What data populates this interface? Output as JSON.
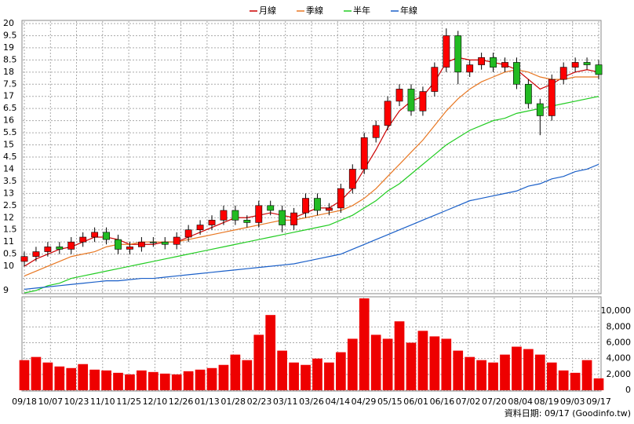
{
  "chart_data": [
    {
      "type": "candlestick",
      "legend": [
        {
          "name": "月線",
          "color": "#cc0000"
        },
        {
          "name": "季線",
          "color": "#e87722"
        },
        {
          "name": "半年",
          "color": "#22cc22"
        },
        {
          "name": "年線",
          "color": "#1a5fc8"
        }
      ],
      "up_color": "#ff0000",
      "down_color": "#22bb22",
      "xlim": [
        0,
        49
      ],
      "xticks": [
        {
          "value": 0,
          "label": "09/18"
        },
        {
          "value": 2.23,
          "label": "10/07"
        },
        {
          "value": 4.45,
          "label": "10/23"
        },
        {
          "value": 6.68,
          "label": "11/10"
        },
        {
          "value": 8.91,
          "label": "11/25"
        },
        {
          "value": 11.14,
          "label": "12/10"
        },
        {
          "value": 13.36,
          "label": "12/26"
        },
        {
          "value": 15.59,
          "label": "01/13"
        },
        {
          "value": 17.82,
          "label": "01/28"
        },
        {
          "value": 20.05,
          "label": "02/23"
        },
        {
          "value": 22.27,
          "label": "03/11"
        },
        {
          "value": 24.5,
          "label": "03/26"
        },
        {
          "value": 26.73,
          "label": "04/14"
        },
        {
          "value": 28.95,
          "label": "04/29"
        },
        {
          "value": 31.18,
          "label": "05/15"
        },
        {
          "value": 33.41,
          "label": "06/01"
        },
        {
          "value": 35.64,
          "label": "06/16"
        },
        {
          "value": 37.86,
          "label": "07/02"
        },
        {
          "value": 40.09,
          "label": "07/20"
        },
        {
          "value": 42.32,
          "label": "08/04"
        },
        {
          "value": 44.55,
          "label": "08/19"
        },
        {
          "value": 46.77,
          "label": "09/03"
        },
        {
          "value": 49,
          "label": "09/17"
        }
      ],
      "ylim": [
        9,
        20
      ],
      "yticks": [
        9,
        {
          "value": 9.5,
          "label": ""
        },
        10,
        {
          "value": 10.5,
          "label": "0.5"
        },
        11,
        {
          "value": 11.5,
          "label": "1.5"
        },
        12,
        {
          "value": 12.5,
          "label": "2.5"
        },
        13,
        {
          "value": 13.5,
          "label": "3.5"
        },
        14,
        {
          "value": 14.5,
          "label": "4.5"
        },
        15,
        {
          "value": 15.5,
          "label": "5.5"
        },
        16,
        {
          "value": 16.5,
          "label": "6.5"
        },
        17,
        {
          "value": 17.5,
          "label": "7.5"
        },
        18,
        {
          "value": 18.5,
          "label": "8.5"
        },
        19,
        {
          "value": 19.5,
          "label": "9.5"
        },
        20
      ],
      "grid": true,
      "open": [
        10.2,
        10.4,
        10.6,
        10.8,
        10.7,
        11.0,
        11.2,
        11.4,
        11.1,
        10.7,
        10.8,
        11.0,
        11.0,
        10.9,
        11.2,
        11.5,
        11.7,
        11.9,
        12.3,
        11.9,
        11.8,
        12.5,
        12.3,
        11.7,
        12.2,
        12.8,
        12.3,
        12.4,
        13.2,
        14.0,
        15.3,
        15.8,
        16.8,
        17.3,
        16.4,
        17.2,
        18.2,
        19.5,
        18.0,
        18.3,
        18.6,
        18.2,
        18.4,
        17.5,
        16.7,
        16.2,
        17.7,
        18.2,
        18.4,
        18.3
      ],
      "high": [
        10.6,
        10.8,
        11.0,
        11.0,
        11.2,
        11.4,
        11.6,
        11.6,
        11.3,
        11.0,
        11.2,
        11.2,
        11.2,
        11.4,
        11.7,
        11.9,
        12.1,
        12.5,
        12.5,
        12.1,
        12.7,
        12.7,
        12.5,
        12.4,
        13.0,
        13.0,
        12.6,
        13.4,
        14.2,
        15.5,
        16.0,
        17.0,
        17.5,
        17.5,
        17.4,
        18.4,
        19.8,
        19.7,
        18.5,
        18.8,
        18.8,
        18.6,
        18.6,
        17.7,
        16.9,
        17.9,
        18.4,
        18.6,
        18.6,
        18.5
      ],
      "low": [
        10.0,
        10.2,
        10.4,
        10.5,
        10.5,
        10.8,
        11.0,
        10.9,
        10.5,
        10.5,
        10.6,
        10.8,
        10.7,
        10.7,
        11.0,
        11.3,
        11.5,
        11.7,
        11.7,
        11.6,
        11.6,
        12.1,
        11.4,
        11.5,
        12.0,
        12.1,
        12.1,
        12.2,
        13.0,
        13.8,
        15.1,
        15.6,
        16.6,
        16.2,
        16.2,
        17.0,
        18.0,
        17.5,
        17.8,
        18.1,
        18.0,
        18.0,
        17.3,
        16.5,
        15.4,
        16.0,
        17.5,
        18.0,
        18.1,
        17.7
      ],
      "close": [
        10.4,
        10.6,
        10.8,
        10.7,
        11.0,
        11.2,
        11.4,
        11.1,
        10.7,
        10.8,
        11.0,
        11.0,
        10.9,
        11.2,
        11.5,
        11.7,
        11.9,
        12.3,
        11.9,
        11.8,
        12.5,
        12.3,
        11.7,
        12.2,
        12.8,
        12.3,
        12.4,
        13.2,
        14.0,
        15.3,
        15.8,
        16.8,
        17.3,
        16.4,
        17.2,
        18.2,
        19.5,
        18.0,
        18.3,
        18.6,
        18.2,
        18.4,
        17.5,
        16.7,
        16.2,
        17.7,
        18.2,
        18.4,
        18.3,
        17.9
      ],
      "series": [
        {
          "name": "月線",
          "color": "#cc0000",
          "values": [
            10.0,
            10.3,
            10.5,
            10.7,
            10.8,
            11.0,
            11.2,
            11.2,
            11.1,
            10.9,
            10.9,
            10.9,
            11.0,
            11.0,
            11.2,
            11.4,
            11.6,
            11.8,
            12.0,
            12.0,
            12.1,
            12.2,
            12.1,
            12.0,
            12.2,
            12.4,
            12.4,
            12.7,
            13.2,
            14.0,
            14.8,
            15.7,
            16.4,
            16.8,
            17.0,
            17.6,
            18.4,
            18.6,
            18.5,
            18.5,
            18.4,
            18.3,
            18.1,
            17.7,
            17.3,
            17.5,
            17.8,
            18.0,
            18.1,
            18.0
          ]
        },
        {
          "name": "季線",
          "color": "#e87722",
          "values": [
            9.6,
            9.8,
            10.0,
            10.2,
            10.4,
            10.5,
            10.6,
            10.8,
            10.9,
            10.9,
            11.0,
            11.0,
            11.0,
            11.0,
            11.1,
            11.2,
            11.3,
            11.4,
            11.5,
            11.6,
            11.7,
            11.8,
            11.9,
            11.9,
            12.0,
            12.1,
            12.2,
            12.3,
            12.5,
            12.8,
            13.2,
            13.7,
            14.2,
            14.7,
            15.2,
            15.8,
            16.4,
            16.9,
            17.3,
            17.6,
            17.8,
            18.0,
            18.1,
            18.0,
            17.8,
            17.7,
            17.7,
            17.8,
            17.8,
            17.8
          ]
        },
        {
          "name": "半年",
          "color": "#22cc22",
          "values": [
            8.9,
            9.0,
            9.2,
            9.3,
            9.5,
            9.6,
            9.7,
            9.8,
            9.9,
            10.0,
            10.1,
            10.2,
            10.3,
            10.4,
            10.5,
            10.6,
            10.7,
            10.8,
            10.9,
            11.0,
            11.1,
            11.2,
            11.3,
            11.4,
            11.5,
            11.6,
            11.7,
            11.9,
            12.1,
            12.4,
            12.7,
            13.1,
            13.4,
            13.8,
            14.2,
            14.6,
            15.0,
            15.3,
            15.6,
            15.8,
            16.0,
            16.1,
            16.3,
            16.4,
            16.5,
            16.6,
            16.7,
            16.8,
            16.9,
            17.0
          ]
        },
        {
          "name": "年線",
          "color": "#1a5fc8",
          "values": [
            9.05,
            9.1,
            9.15,
            9.2,
            9.25,
            9.3,
            9.35,
            9.4,
            9.4,
            9.45,
            9.5,
            9.5,
            9.55,
            9.6,
            9.65,
            9.7,
            9.75,
            9.8,
            9.85,
            9.9,
            9.95,
            10.0,
            10.05,
            10.1,
            10.2,
            10.3,
            10.4,
            10.5,
            10.7,
            10.9,
            11.1,
            11.3,
            11.5,
            11.7,
            11.9,
            12.1,
            12.3,
            12.5,
            12.7,
            12.8,
            12.9,
            13.0,
            13.1,
            13.3,
            13.4,
            13.6,
            13.7,
            13.9,
            14.0,
            14.2
          ]
        }
      ],
      "footer": "資料日期: 09/17 (Goodinfo.tw)"
    },
    {
      "type": "bar",
      "color": "#ee0000",
      "values": [
        3800,
        4200,
        3500,
        3000,
        2800,
        3300,
        2600,
        2500,
        2200,
        2000,
        2500,
        2300,
        2100,
        2000,
        2400,
        2600,
        2800,
        3200,
        4500,
        3800,
        7000,
        9500,
        5000,
        3500,
        3200,
        4000,
        3500,
        4800,
        6500,
        11600,
        7000,
        6500,
        8700,
        6000,
        7500,
        6800,
        6500,
        5000,
        4200,
        3800,
        3500,
        4500,
        5500,
        5200,
        4500,
        3500,
        2500,
        2200,
        3800,
        1500
      ],
      "ylim": [
        0,
        11800
      ],
      "yticks": [
        0,
        {
          "value": 2000,
          "label": "2,000"
        },
        {
          "value": 4000,
          "label": "4,000"
        },
        {
          "value": 6000,
          "label": "6,000"
        },
        {
          "value": 8000,
          "label": "8,000"
        },
        {
          "value": 10000,
          "label": "10,000"
        }
      ],
      "grid": true
    }
  ]
}
